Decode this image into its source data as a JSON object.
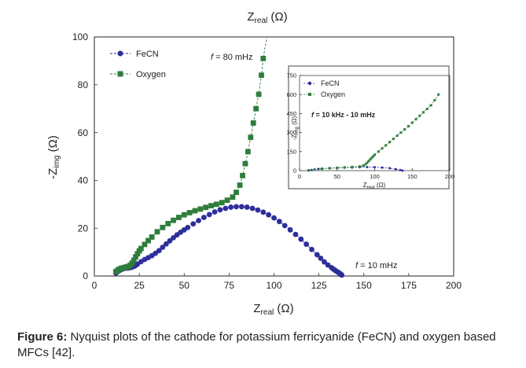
{
  "caption": {
    "label": "Figure 6:",
    "text": " Nyquist plots of the cathode for potassium ferricyanide (FeCN) and oxygen based MFCs [42]."
  },
  "chart_data": [
    {
      "type": "scatter",
      "panel": "main",
      "top_label": {
        "main": "Z",
        "sub": "real",
        "unit": " (Ω)"
      },
      "xlabel": {
        "main": "Z",
        "sub": "real",
        "unit": " (Ω)"
      },
      "ylabel": {
        "main": "-Z",
        "sub": "img",
        "unit": " (Ω)"
      },
      "xlim": [
        0,
        200
      ],
      "ylim": [
        0,
        100
      ],
      "xticks": [
        0,
        25,
        50,
        75,
        100,
        125,
        150,
        175,
        200
      ],
      "yticks": [
        0,
        20,
        40,
        60,
        80,
        100
      ],
      "grid": false,
      "legend_position": "top-left",
      "annotations": [
        {
          "italic": "f",
          "text": " = 80 mHz",
          "x": 76,
          "y": 94
        },
        {
          "italic": "f",
          "text": " = 10 mHz",
          "x": 146,
          "y": 3
        }
      ],
      "series": [
        {
          "name": "FeCN",
          "marker": "circle",
          "color": "#2e2e9a",
          "x": [
            12,
            13,
            14,
            15,
            16,
            17,
            18,
            19,
            20,
            21,
            22,
            23,
            24,
            26,
            28,
            30,
            32,
            34,
            36,
            38,
            40,
            42,
            44,
            46,
            48,
            50,
            52,
            55,
            58,
            61,
            64,
            67,
            70,
            73,
            76,
            79,
            82,
            85,
            88,
            91,
            94,
            97,
            100,
            103,
            106,
            109,
            112,
            115,
            118,
            121,
            124,
            126,
            128,
            130,
            132,
            133,
            134,
            135,
            135.6,
            136.2,
            136.7,
            137.1,
            137.4,
            137.6,
            137.7
          ],
          "y": [
            1.2,
            1.8,
            2.3,
            2.7,
            3.0,
            3.2,
            3.3,
            3.4,
            3.5,
            3.7,
            4.0,
            4.4,
            5.0,
            6.0,
            6.9,
            7.7,
            8.5,
            9.5,
            10.6,
            12.0,
            13.4,
            14.7,
            16.0,
            17.2,
            18.3,
            19.3,
            20.3,
            21.8,
            23.2,
            24.5,
            25.7,
            26.8,
            27.7,
            28.3,
            28.8,
            29.0,
            29.0,
            28.8,
            28.3,
            27.6,
            26.7,
            25.6,
            24.3,
            22.8,
            21.1,
            19.3,
            17.4,
            15.4,
            13.3,
            11.1,
            8.9,
            7.4,
            5.9,
            4.6,
            3.5,
            2.9,
            2.4,
            1.9,
            1.6,
            1.3,
            1.0,
            0.8,
            0.6,
            0.5,
            0.4
          ]
        },
        {
          "name": "Oxygen",
          "marker": "square",
          "color": "#2e7d3c",
          "x": [
            12,
            13,
            14,
            15,
            16,
            17,
            18,
            19,
            20,
            21,
            22,
            23,
            24,
            25,
            26,
            28,
            30,
            32,
            35,
            38,
            41,
            44,
            47,
            50,
            53,
            56,
            59,
            62,
            65,
            68,
            71,
            74,
            77,
            79,
            81,
            82.5,
            84,
            85.5,
            87,
            88.5,
            90,
            91.5,
            93,
            94
          ],
          "y": [
            1.8,
            2.4,
            2.9,
            3.2,
            3.4,
            3.6,
            3.8,
            4.0,
            4.5,
            5.4,
            6.6,
            8.0,
            9.3,
            10.5,
            11.5,
            13.2,
            14.8,
            16.3,
            18.5,
            20.3,
            21.9,
            23.3,
            24.5,
            25.6,
            26.5,
            27.3,
            28.0,
            28.7,
            29.4,
            30.0,
            30.7,
            31.7,
            33.0,
            35.0,
            38.0,
            42.0,
            47.0,
            52.0,
            58.0,
            64.0,
            70.0,
            76.0,
            84.0,
            91.0
          ]
        }
      ]
    },
    {
      "type": "scatter",
      "panel": "inset",
      "xlabel": {
        "main": "Z",
        "sub": "real",
        "unit": " (Ω)"
      },
      "ylabel": {
        "main": "-Z",
        "sub": "img",
        "unit": " (Ω)"
      },
      "xlim": [
        0,
        200
      ],
      "ylim": [
        0,
        750
      ],
      "xticks": [
        0,
        50,
        100,
        150,
        200
      ],
      "yticks": [
        0,
        150,
        300,
        450,
        600,
        750
      ],
      "grid": false,
      "legend_position": "top-left",
      "annotations": [
        {
          "italic": "f",
          "text": " = 10 kHz - 10 mHz"
        }
      ],
      "series": [
        {
          "name": "FeCN",
          "marker": "circle",
          "color": "#2e2e9a",
          "x": [
            12,
            16,
            20,
            25,
            30,
            40,
            50,
            60,
            70,
            80,
            90,
            100,
            110,
            120,
            128,
            134,
            137
          ],
          "y": [
            2,
            5,
            9,
            13,
            16,
            19,
            21,
            23,
            25,
            27,
            28,
            27,
            24,
            19,
            12,
            5,
            1
          ]
        },
        {
          "name": "Oxygen",
          "marker": "square",
          "color": "#2e7d3c",
          "x": [
            12,
            20,
            30,
            40,
            50,
            60,
            70,
            80,
            85,
            88,
            90,
            92,
            94,
            96,
            98,
            100,
            105,
            110,
            115,
            120,
            125,
            130,
            135,
            140,
            145,
            150,
            155,
            160,
            165,
            170,
            175,
            180,
            185
          ],
          "y": [
            2,
            8,
            14,
            19,
            23,
            26,
            29,
            33,
            40,
            50,
            62,
            75,
            88,
            100,
            112,
            125,
            150,
            175,
            200,
            225,
            250,
            275,
            300,
            325,
            350,
            378,
            405,
            432,
            460,
            487,
            515,
            555,
            600
          ]
        }
      ]
    }
  ]
}
